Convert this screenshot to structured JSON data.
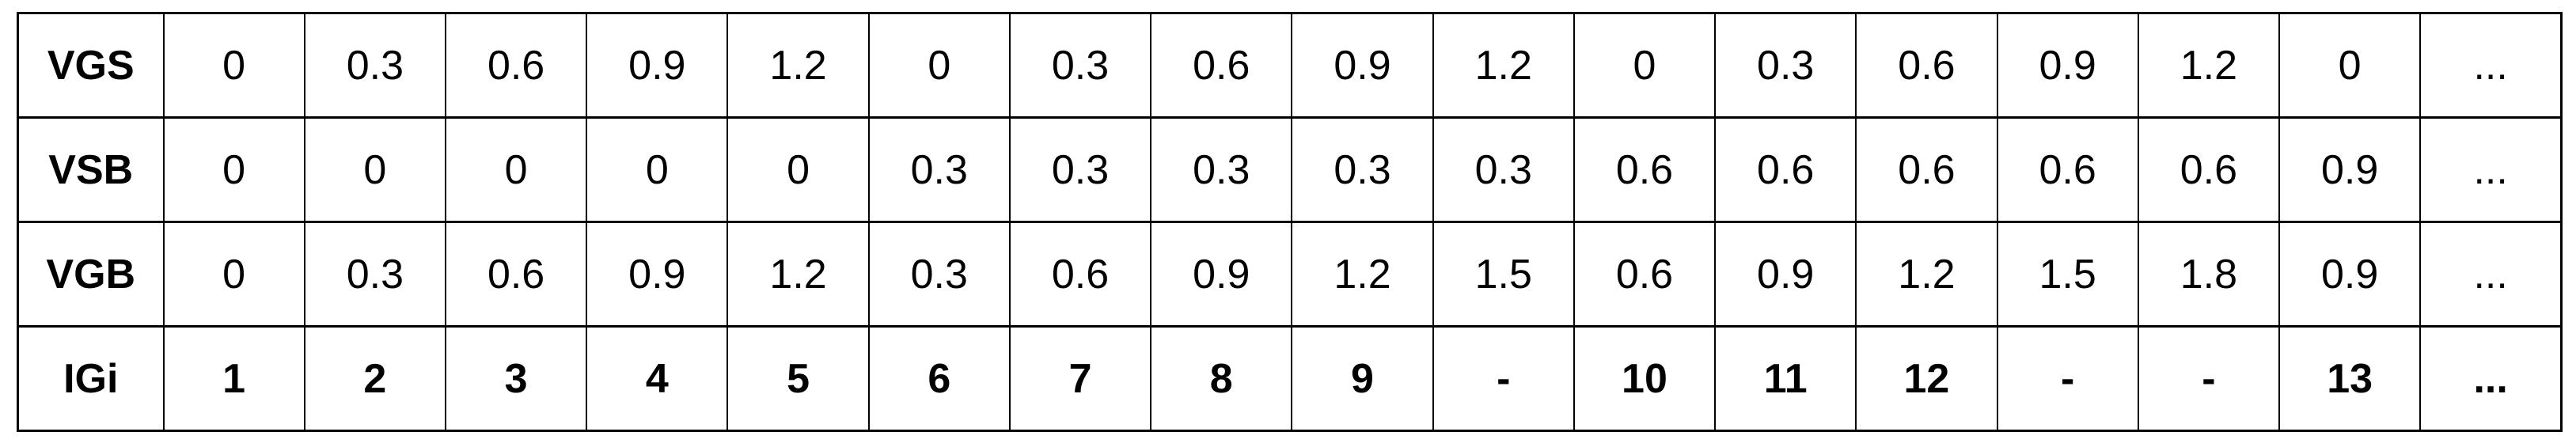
{
  "chart_data": {
    "type": "table",
    "row_header_labels": [
      "VGS",
      "VSB",
      "VGB",
      "IGi"
    ],
    "rows": [
      {
        "label": "VGS",
        "bold": false,
        "cells": [
          {
            "text": "0",
            "bg": "white"
          },
          {
            "text": "0.3",
            "bg": "white"
          },
          {
            "text": "0.6",
            "bg": "white"
          },
          {
            "text": "0.9",
            "bg": "white"
          },
          {
            "text": "1.2",
            "bg": "white"
          },
          {
            "text": "0",
            "bg": "white"
          },
          {
            "text": "0.3",
            "bg": "white"
          },
          {
            "text": "0.6",
            "bg": "white"
          },
          {
            "text": "0.9",
            "bg": "white"
          },
          {
            "text": "1.2",
            "bg": "white"
          },
          {
            "text": "0",
            "bg": "white"
          },
          {
            "text": "0.3",
            "bg": "white"
          },
          {
            "text": "0.6",
            "bg": "white"
          },
          {
            "text": "0.9",
            "bg": "white"
          },
          {
            "text": "1.2",
            "bg": "white"
          },
          {
            "text": "0",
            "bg": "white"
          },
          {
            "text": "...",
            "bg": "white"
          }
        ]
      },
      {
        "label": "VSB",
        "bold": false,
        "cells": [
          {
            "text": "0",
            "bg": "white"
          },
          {
            "text": "0",
            "bg": "white"
          },
          {
            "text": "0",
            "bg": "white"
          },
          {
            "text": "0",
            "bg": "white"
          },
          {
            "text": "0",
            "bg": "white"
          },
          {
            "text": "0.3",
            "bg": "white"
          },
          {
            "text": "0.3",
            "bg": "white"
          },
          {
            "text": "0.3",
            "bg": "white"
          },
          {
            "text": "0.3",
            "bg": "white"
          },
          {
            "text": "0.3",
            "bg": "white"
          },
          {
            "text": "0.6",
            "bg": "white"
          },
          {
            "text": "0.6",
            "bg": "white"
          },
          {
            "text": "0.6",
            "bg": "white"
          },
          {
            "text": "0.6",
            "bg": "white"
          },
          {
            "text": "0.6",
            "bg": "white"
          },
          {
            "text": "0.9",
            "bg": "white"
          },
          {
            "text": "...",
            "bg": "white"
          }
        ]
      },
      {
        "label": "VGB",
        "bold": false,
        "cells": [
          {
            "text": "0",
            "bg": "green"
          },
          {
            "text": "0.3",
            "bg": "green"
          },
          {
            "text": "0.6",
            "bg": "green"
          },
          {
            "text": "0.9",
            "bg": "green"
          },
          {
            "text": "1.2",
            "bg": "green"
          },
          {
            "text": "0.3",
            "bg": "green"
          },
          {
            "text": "0.6",
            "bg": "green"
          },
          {
            "text": "0.9",
            "bg": "green"
          },
          {
            "text": "1.2",
            "bg": "green"
          },
          {
            "text": "1.5",
            "bg": "red"
          },
          {
            "text": "0.6",
            "bg": "green"
          },
          {
            "text": "0.9",
            "bg": "green"
          },
          {
            "text": "1.2",
            "bg": "green"
          },
          {
            "text": "1.5",
            "bg": "red"
          },
          {
            "text": "1.8",
            "bg": "red"
          },
          {
            "text": "0.9",
            "bg": "green"
          },
          {
            "text": "...",
            "bg": "green"
          }
        ]
      },
      {
        "label": "IGi",
        "bold": true,
        "cells": [
          {
            "text": "1",
            "bg": "white"
          },
          {
            "text": "2",
            "bg": "white"
          },
          {
            "text": "3",
            "bg": "white"
          },
          {
            "text": "4",
            "bg": "white"
          },
          {
            "text": "5",
            "bg": "white"
          },
          {
            "text": "6",
            "bg": "white"
          },
          {
            "text": "7",
            "bg": "white"
          },
          {
            "text": "8",
            "bg": "white"
          },
          {
            "text": "9",
            "bg": "white"
          },
          {
            "text": "-",
            "bg": "white"
          },
          {
            "text": "10",
            "bg": "white"
          },
          {
            "text": "11",
            "bg": "white"
          },
          {
            "text": "12",
            "bg": "white"
          },
          {
            "text": "-",
            "bg": "white"
          },
          {
            "text": "-",
            "bg": "white"
          },
          {
            "text": "13",
            "bg": "white"
          },
          {
            "text": "...",
            "bg": "white"
          }
        ]
      }
    ]
  },
  "colors": {
    "highlight_green": "#b7dfc8",
    "highlight_red": "#f4cccc",
    "cell_white": "#ffffff",
    "border": "#000000",
    "text": "#000000"
  }
}
